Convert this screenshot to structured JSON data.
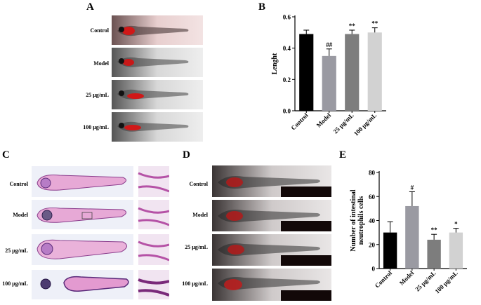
{
  "panels": {
    "A": {
      "label": "A",
      "rows": [
        "Control",
        "Model",
        "25 μg/mL",
        "100 μg/mL"
      ]
    },
    "B": {
      "label": "B"
    },
    "C": {
      "label": "C",
      "rows": [
        "Control",
        "Model",
        "25 μg/mL",
        "100 μg/mL"
      ]
    },
    "D": {
      "label": "D",
      "rows": [
        "Control",
        "Model",
        "25 μg/mL",
        "100 μg/mL"
      ]
    },
    "E": {
      "label": "E"
    }
  },
  "chart_data": [
    {
      "id": "B",
      "type": "bar",
      "categories": [
        "Control",
        "Model",
        "25 μg/mL",
        "100 μg/mL"
      ],
      "values": [
        0.49,
        0.35,
        0.49,
        0.5
      ],
      "errors": [
        0.025,
        0.045,
        0.025,
        0.03
      ],
      "annotations": [
        "",
        "##",
        "**",
        "**"
      ],
      "colors": [
        "#000000",
        "#9a9aa2",
        "#7d7d7d",
        "#d2d2d2"
      ],
      "ylabel": "Lenght",
      "ylim": [
        0,
        0.6
      ],
      "yticks": [
        "0.0",
        "0.2",
        "0.4",
        "0.6"
      ]
    },
    {
      "id": "E",
      "type": "bar",
      "categories": [
        "Control",
        "Model",
        "25 μg/mL",
        "100 μg/mL"
      ],
      "values": [
        30,
        52,
        24,
        30
      ],
      "errors": [
        9,
        12,
        4.5,
        3.5
      ],
      "annotations": [
        "",
        "#",
        "**",
        "*"
      ],
      "colors": [
        "#000000",
        "#9a9aa2",
        "#7d7d7d",
        "#d2d2d2"
      ],
      "ylabel": "Number of intestinal neutrophils cells",
      "ylabel_lines": [
        "Number of intestinal",
        "neutrophils cells"
      ],
      "ylim": [
        0,
        80
      ],
      "yticks": [
        "0",
        "20",
        "40",
        "60",
        "80"
      ]
    }
  ]
}
